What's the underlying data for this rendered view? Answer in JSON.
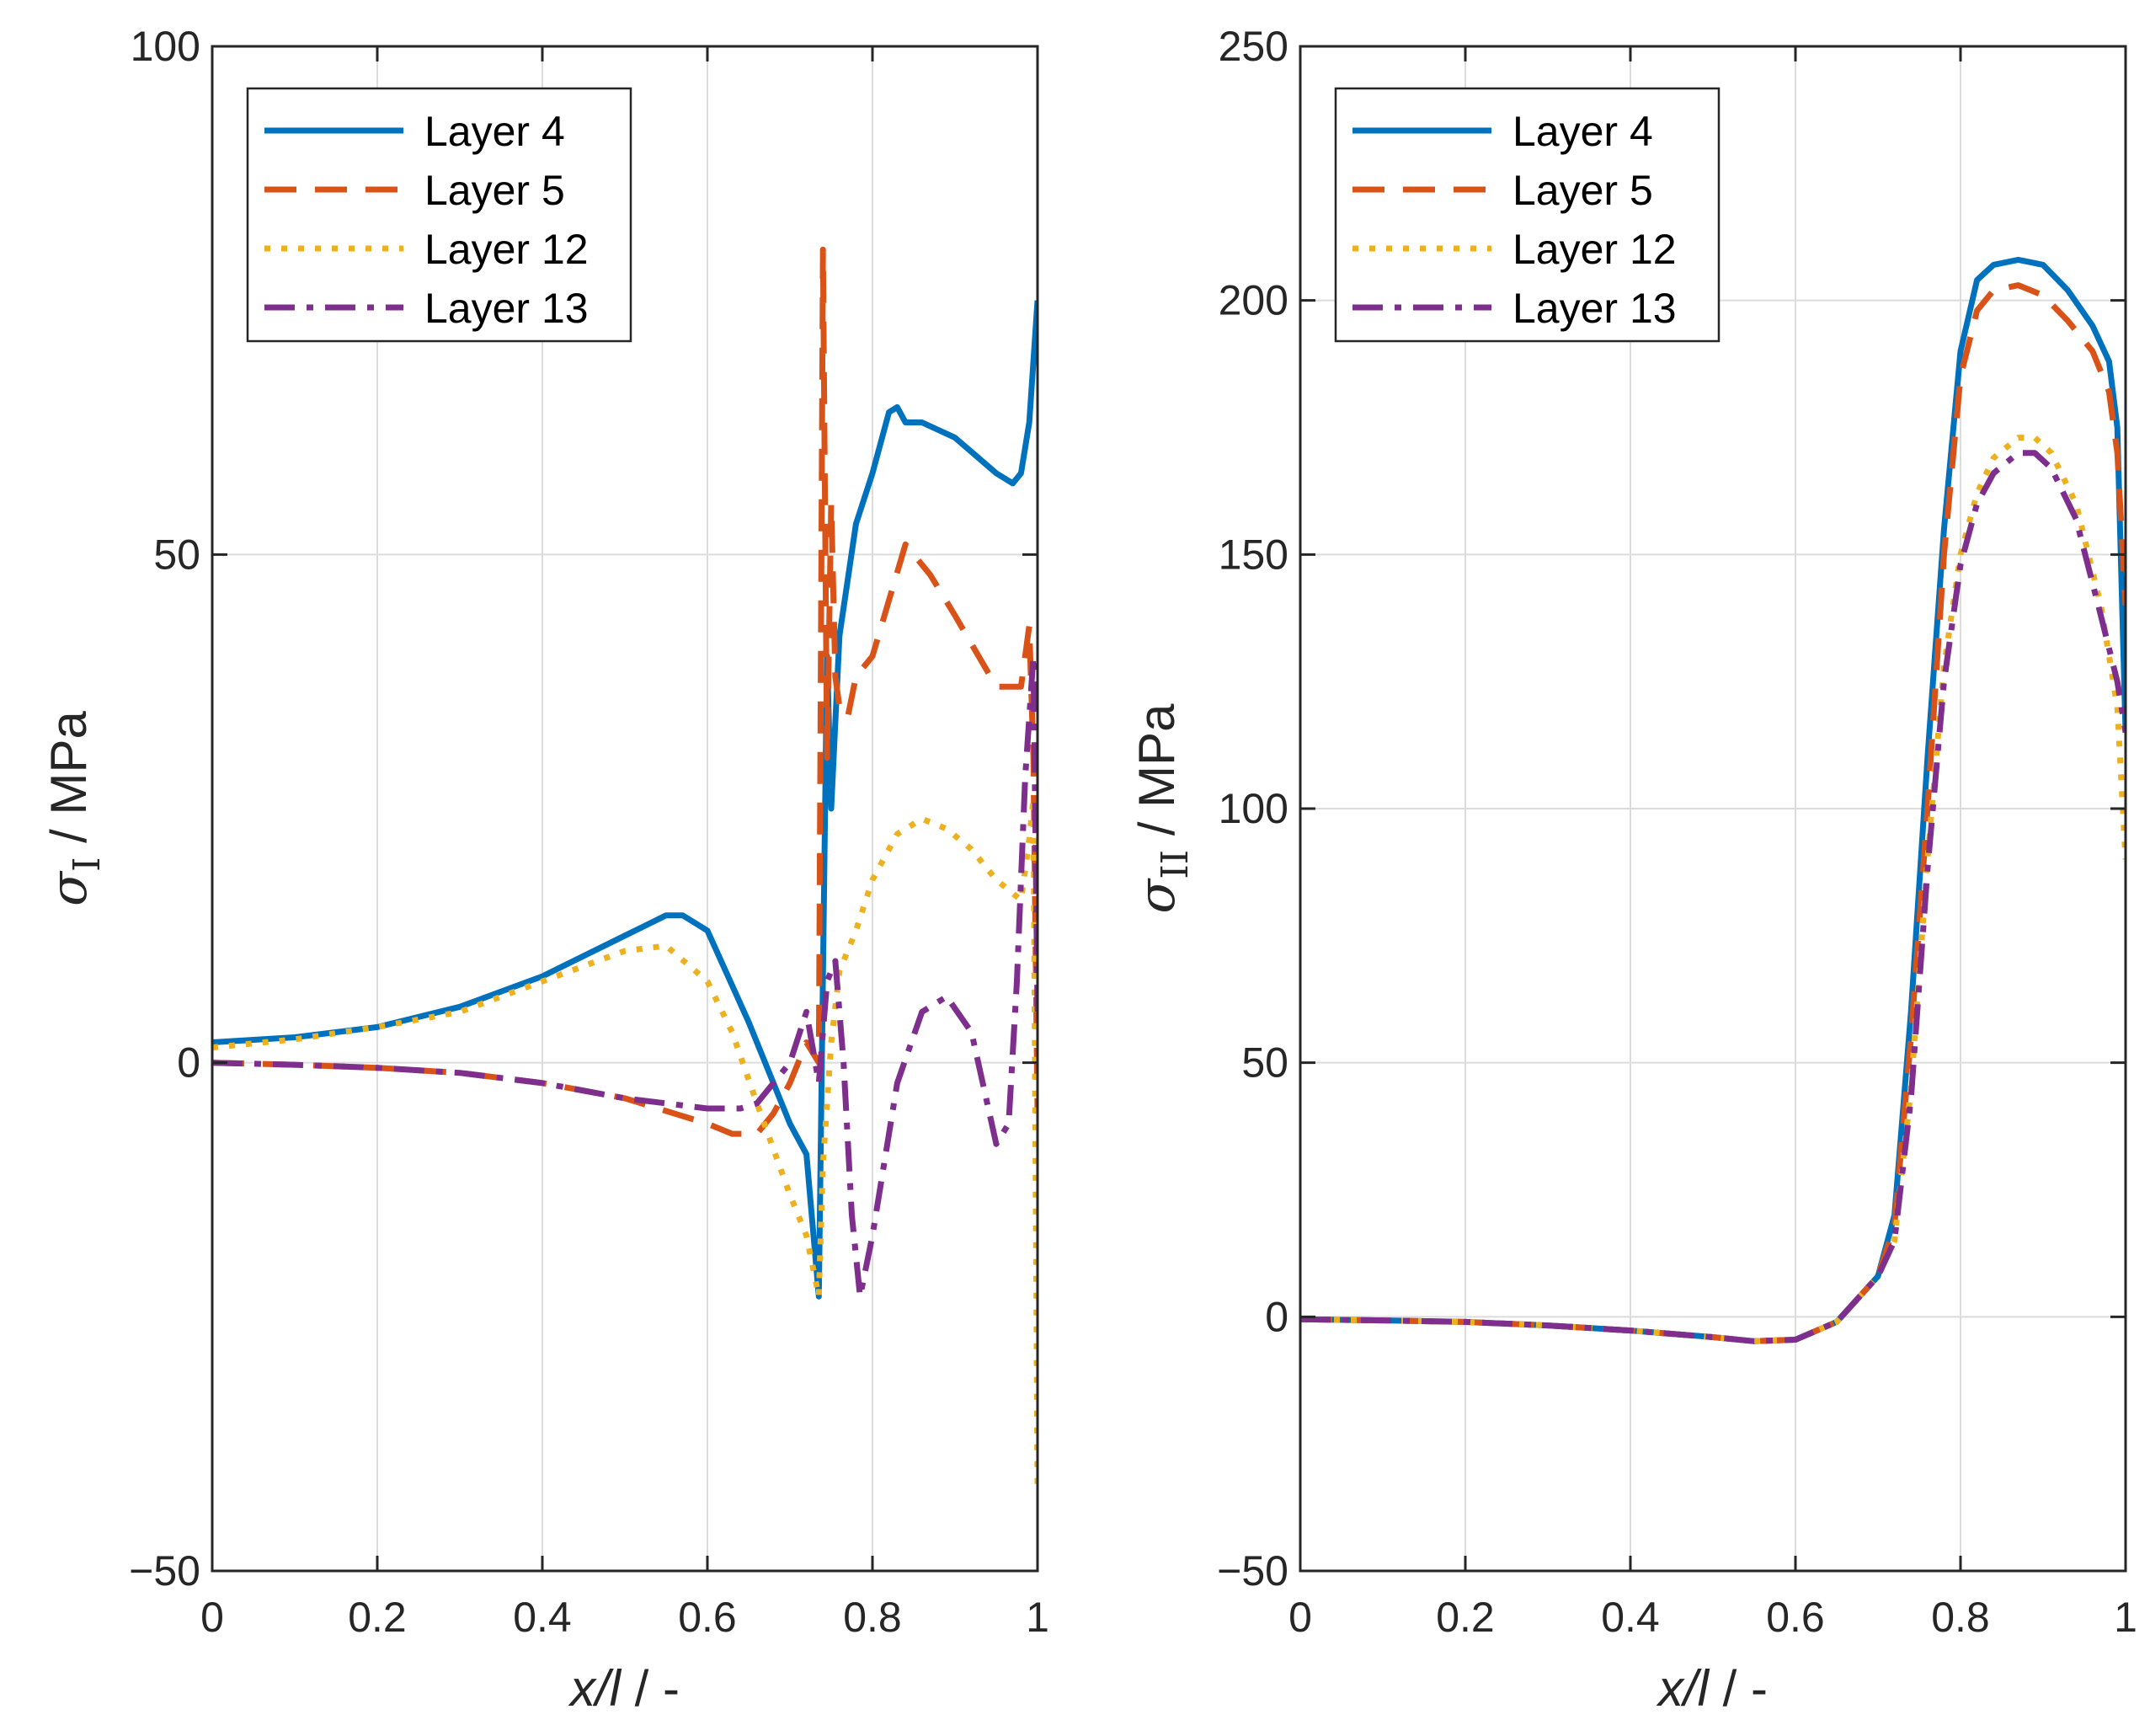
{
  "chart_data": [
    {
      "type": "line",
      "xlabel": {
        "italic": "x/l",
        "rest": " / -"
      },
      "ylabel": {
        "symbol": "σ",
        "subscript": "I",
        "rest": " / MPa"
      },
      "xlim": [
        0,
        1
      ],
      "ylim": [
        -50,
        100
      ],
      "xticks": [
        0,
        0.2,
        0.4,
        0.6,
        0.8,
        1
      ],
      "xtick_labels": [
        "0",
        "0.2",
        "0.4",
        "0.6",
        "0.8",
        "1"
      ],
      "yticks": [
        -50,
        0,
        50,
        100
      ],
      "ytick_labels": [
        "−50",
        "0",
        "50",
        "100"
      ],
      "grid": true,
      "legend_position": "top-left",
      "series": [
        {
          "name": "Layer 4",
          "color": "#0072BD",
          "style": "solid",
          "x": [
            0,
            0.1,
            0.2,
            0.3,
            0.4,
            0.5,
            0.55,
            0.57,
            0.6,
            0.65,
            0.7,
            0.72,
            0.735,
            0.745,
            0.75,
            0.76,
            0.78,
            0.8,
            0.82,
            0.83,
            0.84,
            0.86,
            0.9,
            0.95,
            0.97,
            0.98,
            0.99,
            1.0
          ],
          "y": [
            2,
            2.5,
            3.5,
            5.5,
            8.5,
            12.5,
            14.5,
            14.5,
            13,
            4,
            -6,
            -9,
            -23,
            40,
            25,
            42,
            53,
            58,
            64,
            64.5,
            63,
            63,
            61.5,
            58,
            57,
            58,
            63,
            75
          ]
        },
        {
          "name": "Layer 5",
          "color": "#D95319",
          "style": "dashed",
          "x": [
            0,
            0.1,
            0.2,
            0.3,
            0.4,
            0.5,
            0.6,
            0.63,
            0.66,
            0.68,
            0.7,
            0.72,
            0.735,
            0.74,
            0.745,
            0.75,
            0.755,
            0.76,
            0.77,
            0.78,
            0.8,
            0.84,
            0.87,
            0.9,
            0.95,
            0.98,
            0.99,
            0.995,
            1.0
          ],
          "y": [
            0,
            -0.2,
            -0.5,
            -1,
            -2,
            -3.5,
            -6,
            -7,
            -7,
            -5,
            -2,
            2,
            0,
            80,
            30,
            55,
            38,
            35,
            34,
            38,
            40,
            51,
            48,
            44,
            37,
            37,
            43,
            30,
            -5
          ]
        },
        {
          "name": "Layer 12",
          "color": "#EDB120",
          "style": "dotted",
          "x": [
            0,
            0.1,
            0.2,
            0.3,
            0.4,
            0.5,
            0.55,
            0.6,
            0.63,
            0.66,
            0.7,
            0.72,
            0.735,
            0.74,
            0.75,
            0.76,
            0.78,
            0.8,
            0.83,
            0.86,
            0.89,
            0.92,
            0.95,
            0.98,
            0.99,
            0.995,
            1.0
          ],
          "y": [
            1.5,
            2.3,
            3.5,
            5,
            8,
            11,
            11.5,
            8,
            3,
            -4,
            -13,
            -17,
            -23,
            -10,
            2,
            9,
            13,
            18,
            22.5,
            24,
            23,
            21,
            18,
            16,
            22,
            26,
            -42
          ]
        },
        {
          "name": "Layer 13",
          "color": "#7E2F8E",
          "style": "dashdot",
          "x": [
            0,
            0.1,
            0.2,
            0.3,
            0.4,
            0.5,
            0.6,
            0.64,
            0.66,
            0.7,
            0.72,
            0.735,
            0.745,
            0.755,
            0.765,
            0.775,
            0.785,
            0.8,
            0.83,
            0.86,
            0.89,
            0.92,
            0.95,
            0.965,
            0.975,
            0.985,
            0.995,
            1.0
          ],
          "y": [
            0,
            -0.2,
            -0.5,
            -1,
            -2,
            -3.5,
            -4.5,
            -4.5,
            -4,
            0,
            5,
            -2,
            8,
            10,
            0,
            -15,
            -23,
            -17,
            -2,
            5,
            6.5,
            3,
            -8,
            -6,
            8,
            28,
            40,
            5
          ]
        }
      ]
    },
    {
      "type": "line",
      "xlabel": {
        "italic": "x/l",
        "rest": " / -"
      },
      "ylabel": {
        "symbol": "σ",
        "subscript": "II",
        "rest": " / MPa"
      },
      "xlim": [
        0,
        1
      ],
      "ylim": [
        -50,
        250
      ],
      "xticks": [
        0,
        0.2,
        0.4,
        0.6,
        0.8,
        1
      ],
      "xtick_labels": [
        "0",
        "0.2",
        "0.4",
        "0.6",
        "0.8",
        "1"
      ],
      "yticks": [
        -50,
        0,
        50,
        100,
        150,
        200,
        250
      ],
      "ytick_labels": [
        "−50",
        "0",
        "50",
        "100",
        "150",
        "200",
        "250"
      ],
      "grid": true,
      "legend_position": "top-left",
      "series": [
        {
          "name": "Layer 4",
          "color": "#0072BD",
          "style": "solid",
          "x": [
            0,
            0.1,
            0.2,
            0.3,
            0.4,
            0.5,
            0.55,
            0.6,
            0.65,
            0.7,
            0.72,
            0.74,
            0.76,
            0.78,
            0.8,
            0.82,
            0.84,
            0.87,
            0.9,
            0.93,
            0.96,
            0.98,
            0.99,
            1.0
          ],
          "y": [
            -0.5,
            -0.7,
            -1,
            -1.7,
            -2.7,
            -4,
            -4.8,
            -4.5,
            -1,
            8,
            20,
            60,
            110,
            155,
            190,
            204,
            207,
            208,
            207,
            202,
            195,
            188,
            175,
            115
          ]
        },
        {
          "name": "Layer 5",
          "color": "#D95319",
          "style": "dashed",
          "x": [
            0,
            0.1,
            0.2,
            0.3,
            0.4,
            0.5,
            0.55,
            0.6,
            0.65,
            0.7,
            0.72,
            0.74,
            0.76,
            0.78,
            0.8,
            0.82,
            0.84,
            0.87,
            0.9,
            0.93,
            0.96,
            0.98,
            0.99,
            1.0
          ],
          "y": [
            -0.5,
            -0.7,
            -1,
            -1.7,
            -2.7,
            -4,
            -4.8,
            -4.5,
            -1,
            8,
            18,
            55,
            100,
            150,
            185,
            198,
            202,
            203,
            201,
            196,
            190,
            182,
            170,
            140
          ]
        },
        {
          "name": "Layer 12",
          "color": "#EDB120",
          "style": "dotted",
          "x": [
            0,
            0.1,
            0.2,
            0.3,
            0.4,
            0.5,
            0.55,
            0.6,
            0.65,
            0.7,
            0.72,
            0.74,
            0.76,
            0.78,
            0.8,
            0.82,
            0.84,
            0.87,
            0.89,
            0.91,
            0.94,
            0.97,
            0.99,
            1.0
          ],
          "y": [
            -0.5,
            -0.7,
            -1,
            -1.7,
            -2.7,
            -4,
            -4.8,
            -4.5,
            -1,
            8,
            15,
            45,
            90,
            128,
            150,
            162,
            169,
            173,
            173,
            170,
            160,
            140,
            120,
            90
          ]
        },
        {
          "name": "Layer 13",
          "color": "#7E2F8E",
          "style": "dashdot",
          "x": [
            0,
            0.1,
            0.2,
            0.3,
            0.4,
            0.5,
            0.55,
            0.6,
            0.65,
            0.7,
            0.72,
            0.74,
            0.76,
            0.78,
            0.8,
            0.82,
            0.84,
            0.87,
            0.89,
            0.91,
            0.94,
            0.97,
            0.99,
            1.0
          ],
          "y": [
            -0.5,
            -0.7,
            -1,
            -1.7,
            -2.7,
            -4,
            -4.8,
            -4.5,
            -1,
            8,
            15,
            43,
            88,
            125,
            148,
            160,
            166,
            170,
            170,
            167,
            157,
            138,
            125,
            115
          ]
        }
      ]
    }
  ]
}
